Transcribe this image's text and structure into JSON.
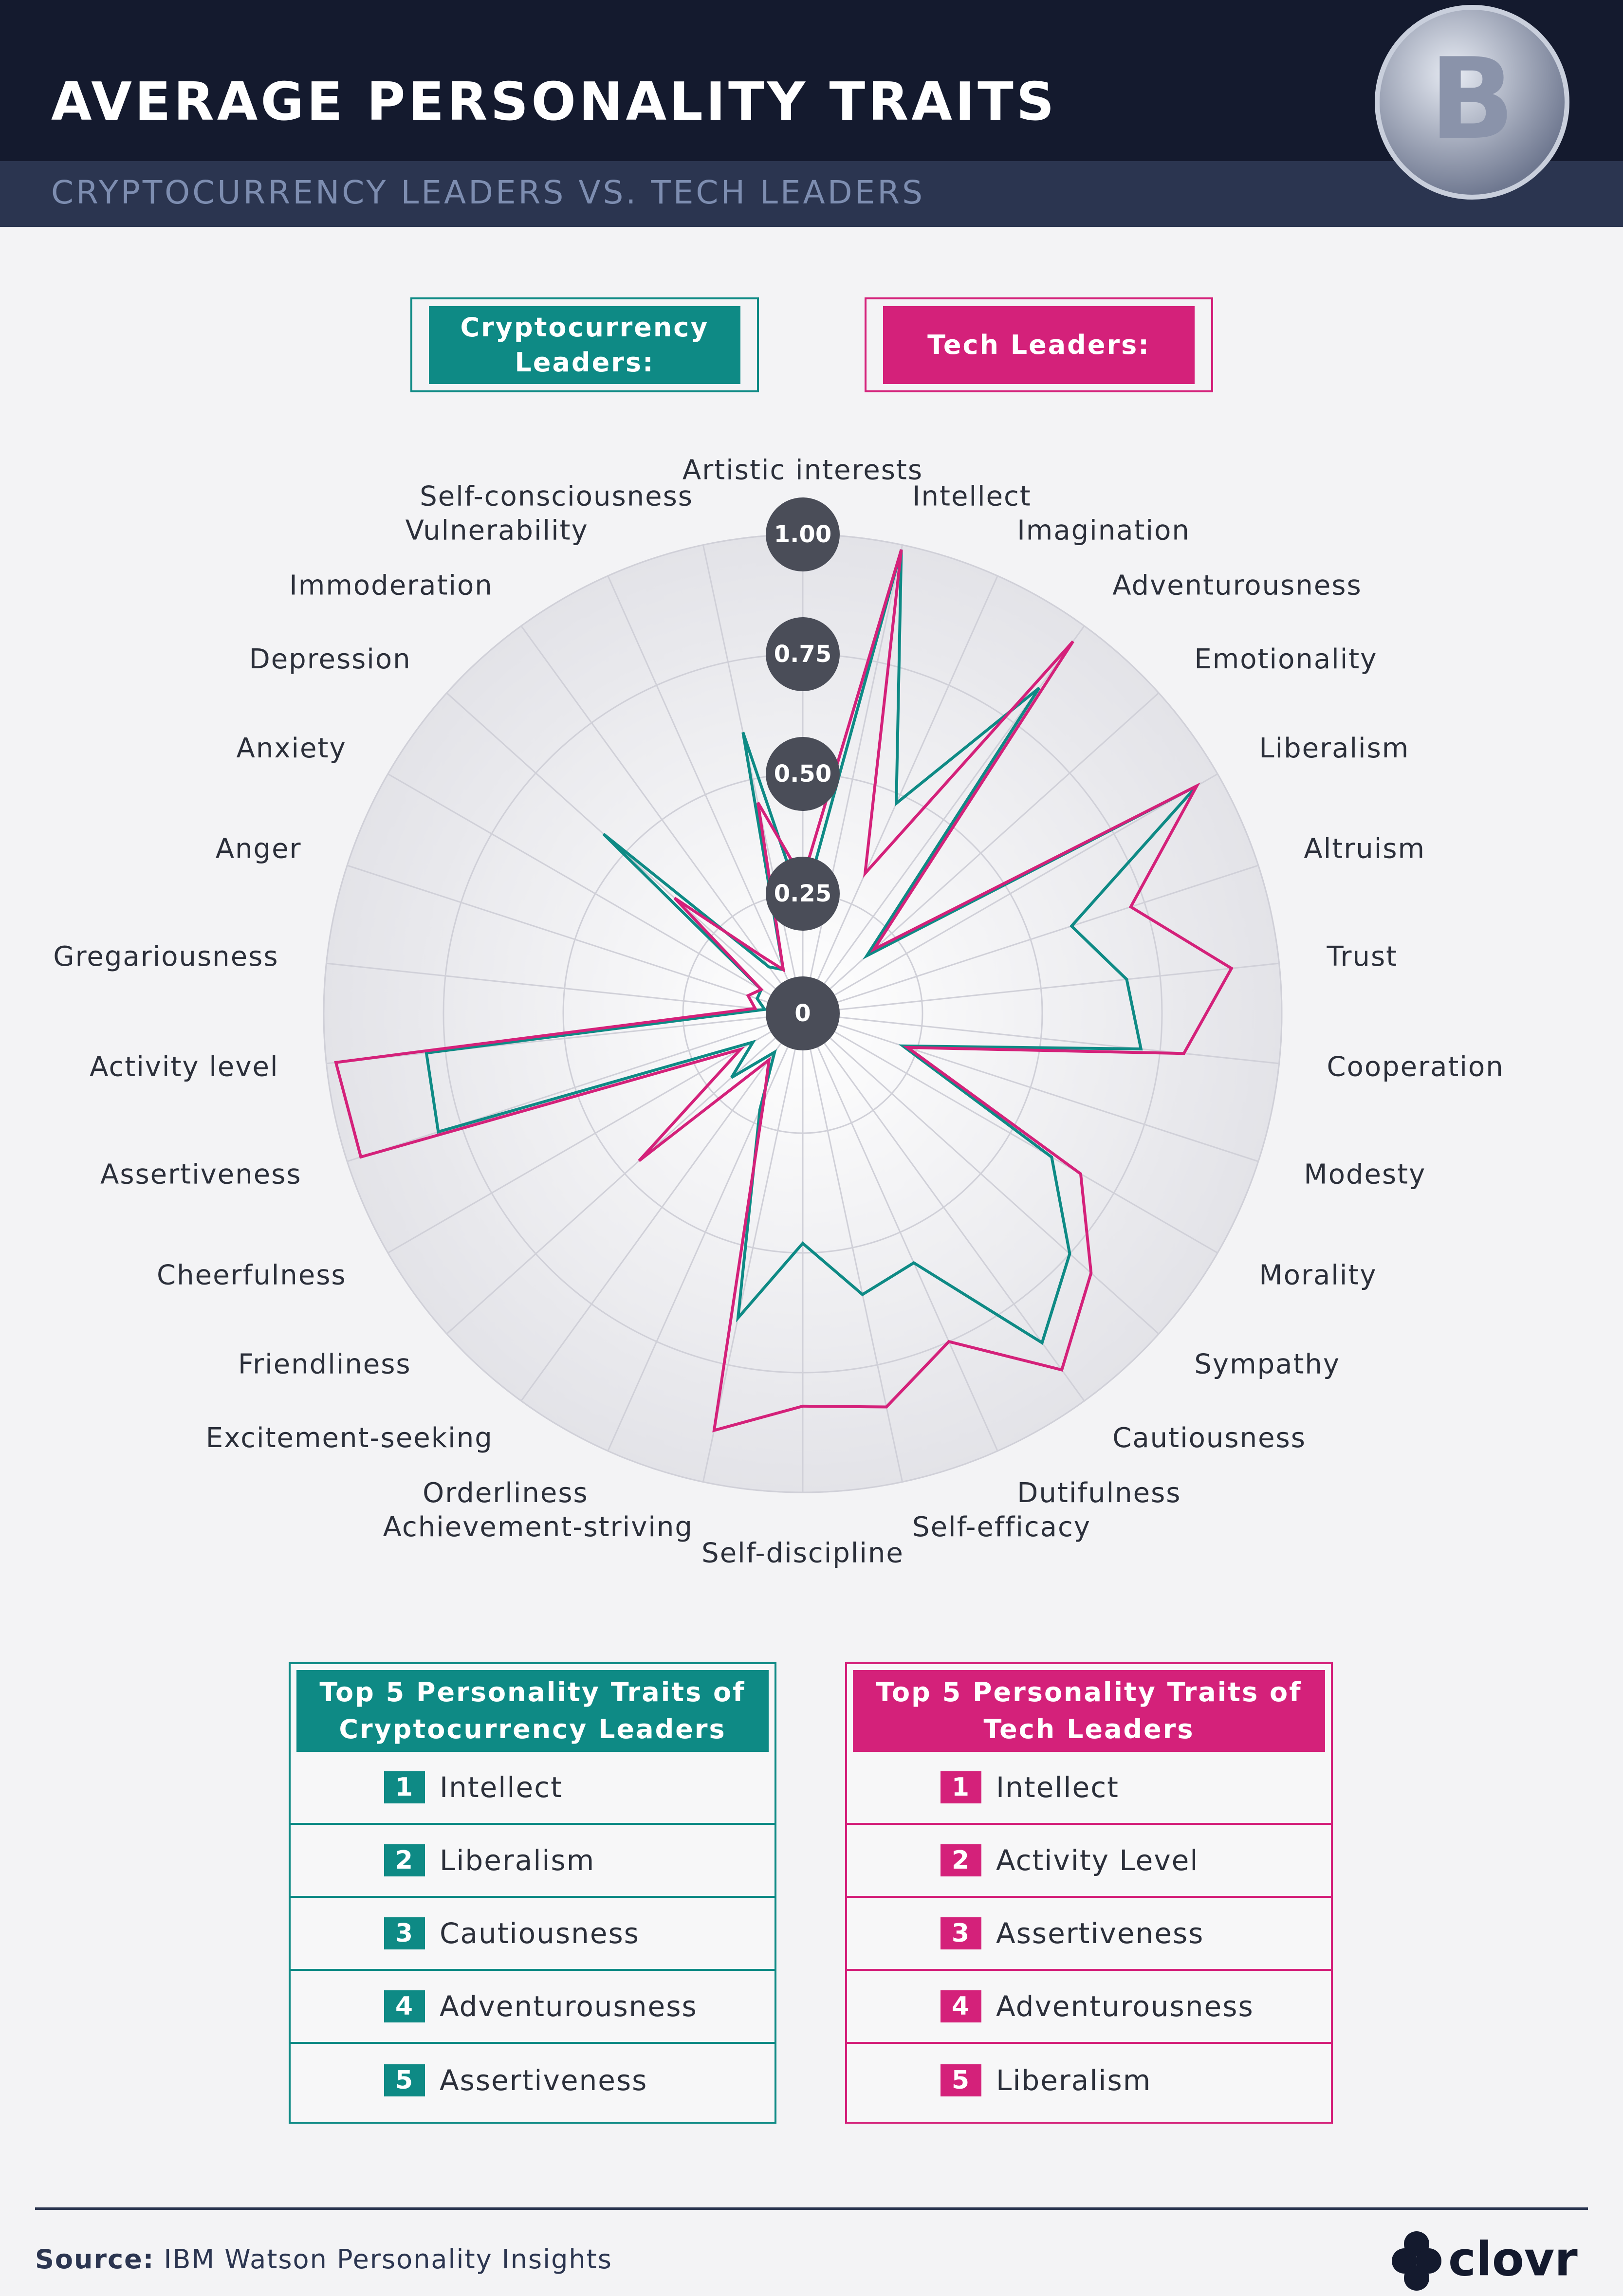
{
  "header": {
    "title": "AVERAGE PERSONALITY TRAITS",
    "subtitle": "CRYPTOCURRENCY LEADERS VS. TECH LEADERS"
  },
  "chart_data": {
    "type": "radar",
    "categories": [
      "Artistic interests",
      "Intellect",
      "Imagination",
      "Adventurousness",
      "Emotionality",
      "Liberalism",
      "Altruism",
      "Trust",
      "Cooperation",
      "Modesty",
      "Morality",
      "Sympathy",
      "Cautiousness",
      "Dutifulness",
      "Self-efficacy",
      "Self-discipline",
      "Achievement-striving",
      "Orderliness",
      "Excitement-seeking",
      "Friendliness",
      "Cheerfulness",
      "Assertiveness",
      "Activity level",
      "Gregariousness",
      "Anger",
      "Anxiety",
      "Depression",
      "Immoderation",
      "Vulnerability",
      "Self-consciousness"
    ],
    "series": [
      {
        "name": "Cryptocurrency Leaders:",
        "color": "#0e8a85",
        "values": [
          0.22,
          0.99,
          0.48,
          0.84,
          0.18,
          0.95,
          0.59,
          0.68,
          0.71,
          0.22,
          0.6,
          0.75,
          0.85,
          0.57,
          0.6,
          0.48,
          0.65,
          0.22,
          0.1,
          0.2,
          0.12,
          0.8,
          0.79,
          0.08,
          0.1,
          0.1,
          0.56,
          0.12,
          0.1,
          0.6
        ]
      },
      {
        "name": "Tech Leaders:",
        "color": "#d4217a",
        "values": [
          0.28,
          0.99,
          0.32,
          0.96,
          0.2,
          0.95,
          0.72,
          0.9,
          0.8,
          0.23,
          0.67,
          0.81,
          0.92,
          0.75,
          0.84,
          0.82,
          0.89,
          0.2,
          0.12,
          0.46,
          0.15,
          0.97,
          0.98,
          0.1,
          0.12,
          0.1,
          0.36,
          0.15,
          0.1,
          0.45
        ]
      }
    ],
    "ylim": [
      0,
      1
    ],
    "yticks": [
      0,
      0.25,
      {
        "value": 0.5,
        "label": "0.50"
      },
      0.75,
      {
        "value": 1,
        "label": "1.00"
      }
    ]
  },
  "tables": [
    {
      "title": "Top 5 Personality Traits of Cryptocurrency Leaders",
      "color": "#0e8a85",
      "rows": [
        {
          "rank": 1,
          "trait": "Intellect"
        },
        {
          "rank": 2,
          "trait": "Liberalism"
        },
        {
          "rank": 3,
          "trait": "Cautiousness"
        },
        {
          "rank": 4,
          "trait": "Adventurousness"
        },
        {
          "rank": 5,
          "trait": "Assertiveness"
        }
      ]
    },
    {
      "title": "Top 5 Personality Traits of Tech Leaders",
      "color": "#d4217a",
      "rows": [
        {
          "rank": 1,
          "trait": "Intellect"
        },
        {
          "rank": 2,
          "trait": "Activity Level"
        },
        {
          "rank": 3,
          "trait": "Assertiveness"
        },
        {
          "rank": 4,
          "trait": "Adventurousness"
        },
        {
          "rank": 5,
          "trait": "Liberalism"
        }
      ]
    }
  ],
  "footer": {
    "source_label": "Source:",
    "source": "IBM Watson Personality Insights",
    "brand": "clovr"
  }
}
